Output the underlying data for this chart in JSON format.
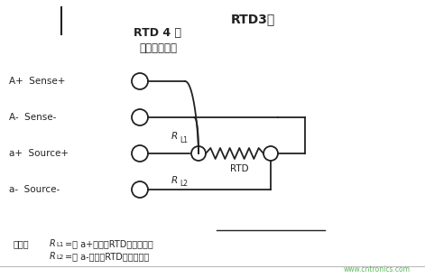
{
  "title_right": "RTD3线",
  "title_main": "RTD 4 线",
  "subtitle_main": "（精度最高）",
  "label_Ap": "A+  Sense+",
  "label_Am": "A-  Sense-",
  "label_ap": "a+  Source+",
  "label_am": "a-  Source-",
  "label_RL1": "R",
  "label_RL1_sub": "L1",
  "label_RL2": "R",
  "label_RL2_sub": "L2",
  "label_RTD": "RTD",
  "note_prefix": "注意：",
  "note_line1": "R",
  "note_line1_sub": "L1",
  "note_line1_text": "=从 a+端子到RTD的导线电阻",
  "note_line2": "R",
  "note_line2_sub": "L2",
  "note_line2_text": "=从 a-端子到RTD的导线电阻",
  "watermark": "www.cntronics.com",
  "bg_color": "#ffffff",
  "line_color": "#222222",
  "text_color": "#222222"
}
